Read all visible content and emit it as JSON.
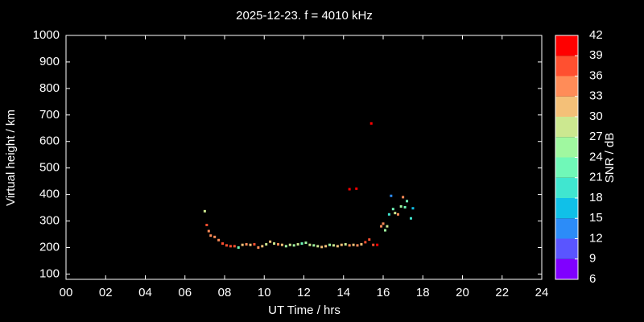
{
  "chart_data": {
    "type": "scatter",
    "title": "2025-12-23. f = 4010 kHz",
    "x_label": "UT Time / hrs",
    "y_label": "Virtual height / km",
    "xlim": [
      0,
      24
    ],
    "xticks": [
      {
        "value": 0,
        "label": "00"
      },
      {
        "value": 2,
        "label": "02"
      },
      {
        "value": 4,
        "label": "04"
      },
      {
        "value": 6,
        "label": "06"
      },
      {
        "value": 8,
        "label": "08"
      },
      10,
      12,
      14,
      16,
      18,
      20,
      22,
      24
    ],
    "ylim": [
      80,
      1000
    ],
    "yticks": [
      100,
      200,
      300,
      400,
      500,
      600,
      700,
      800,
      900,
      1000
    ],
    "series": [
      {
        "x": [
          7.0,
          7.1,
          7.2,
          7.3,
          7.5,
          7.7,
          7.9,
          8.1,
          8.3,
          8.5,
          8.7,
          8.9,
          9.1,
          9.3,
          9.5,
          9.7,
          9.9,
          10.1,
          10.3,
          10.5,
          10.7,
          10.9,
          11.1,
          11.3,
          11.5,
          11.7,
          11.9,
          12.1,
          12.3,
          12.5,
          12.7,
          12.9,
          13.1,
          13.3,
          13.5,
          13.7,
          13.9,
          14.1,
          14.3,
          14.5,
          14.7,
          14.9,
          15.1,
          15.3,
          15.5,
          15.7,
          14.3,
          14.65,
          15.4,
          15.9,
          16.0,
          16.1,
          16.2,
          16.3,
          16.4,
          16.5,
          16.6,
          16.75,
          16.9,
          17.0,
          17.1,
          17.2,
          17.4,
          17.5
        ],
        "values": [
          337,
          285,
          262,
          245,
          240,
          228,
          215,
          208,
          205,
          205,
          200,
          210,
          212,
          210,
          212,
          200,
          205,
          212,
          222,
          215,
          212,
          210,
          205,
          210,
          208,
          212,
          215,
          218,
          210,
          208,
          205,
          202,
          205,
          210,
          208,
          205,
          210,
          212,
          208,
          210,
          208,
          212,
          220,
          230,
          210,
          210,
          420,
          422,
          668,
          280,
          290,
          265,
          280,
          325,
          395,
          345,
          330,
          325,
          355,
          390,
          352,
          375,
          310,
          348
        ],
        "snr": [
          28,
          37,
          34,
          34,
          34,
          34,
          37,
          37,
          37,
          37,
          22,
          31,
          34,
          31,
          37,
          34,
          31,
          28,
          31,
          28,
          34,
          31,
          25,
          28,
          25,
          28,
          22,
          25,
          28,
          25,
          28,
          31,
          31,
          25,
          28,
          31,
          31,
          28,
          34,
          31,
          34,
          31,
          37,
          37,
          37,
          40,
          40,
          40,
          40,
          34,
          34,
          25,
          28,
          19,
          13,
          22,
          28,
          34,
          25,
          34,
          22,
          22,
          19,
          16
        ]
      }
    ],
    "colorbar": {
      "label": "SNR / dB",
      "ticks": [
        6,
        9,
        12,
        15,
        18,
        21,
        24,
        27,
        30,
        33,
        36,
        39,
        42
      ],
      "colors": [
        "#8000ff",
        "#5a55ff",
        "#2c8cf8",
        "#10c0e8",
        "#40e6d0",
        "#70f8b8",
        "#a0f8a0",
        "#cce890",
        "#f4c078",
        "#ff8c58",
        "#ff5030",
        "#ff0000"
      ]
    }
  }
}
